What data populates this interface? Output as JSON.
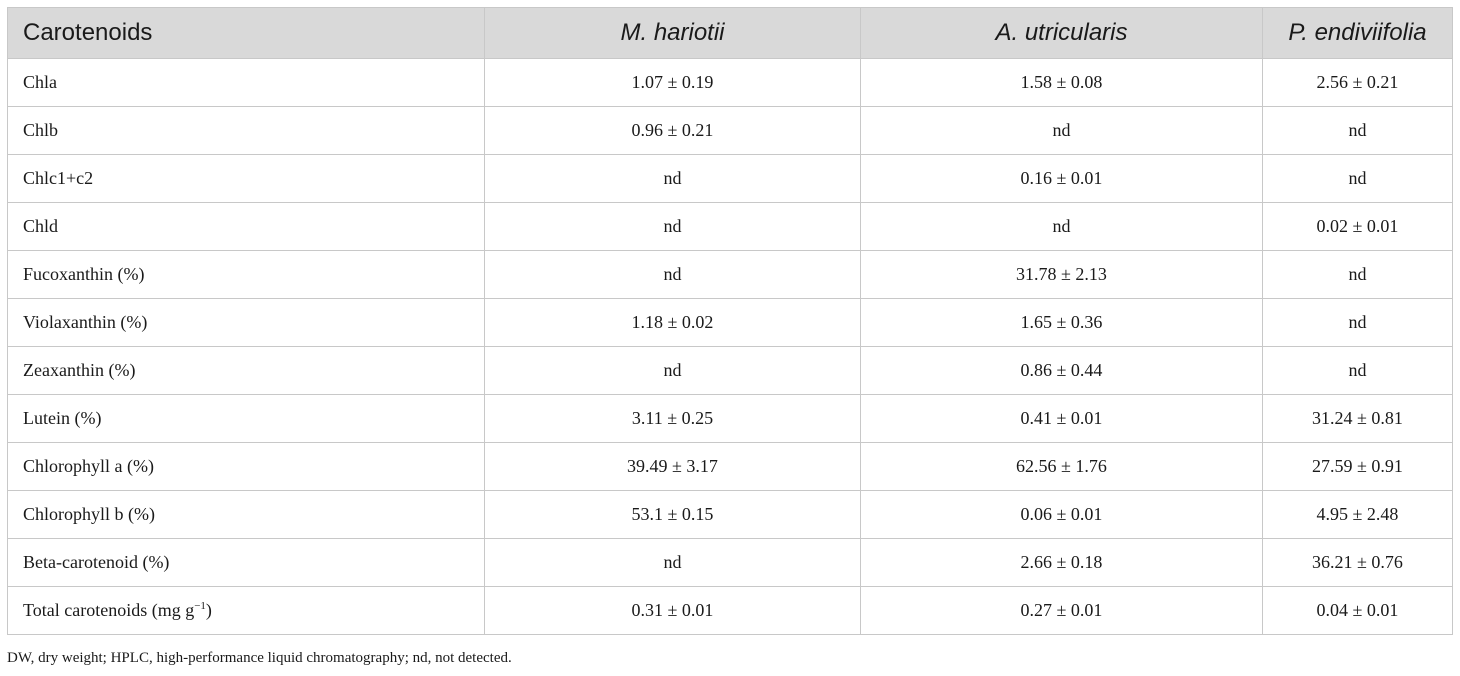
{
  "table": {
    "headers": [
      "Carotenoids",
      "M. hariotii",
      "A. utricularis",
      "P. endiviifolia"
    ],
    "rows": [
      {
        "label": "Chla",
        "values": [
          "1.07 ± 0.19",
          "1.58 ± 0.08",
          "2.56 ± 0.21"
        ]
      },
      {
        "label": "Chlb",
        "values": [
          "0.96 ± 0.21",
          "nd",
          "nd"
        ]
      },
      {
        "label": "Chlc1+c2",
        "values": [
          "nd",
          "0.16 ± 0.01",
          "nd"
        ]
      },
      {
        "label": "Chld",
        "values": [
          "nd",
          "nd",
          "0.02 ± 0.01"
        ]
      },
      {
        "label": "Fucoxanthin (%)",
        "values": [
          "nd",
          "31.78 ± 2.13",
          "nd"
        ]
      },
      {
        "label": "Violaxanthin (%)",
        "values": [
          "1.18 ± 0.02",
          "1.65 ± 0.36",
          "nd"
        ]
      },
      {
        "label": "Zeaxanthin (%)",
        "values": [
          "nd",
          "0.86 ± 0.44",
          "nd"
        ]
      },
      {
        "label": "Lutein (%)",
        "values": [
          "3.11 ± 0.25",
          "0.41 ± 0.01",
          "31.24 ± 0.81"
        ]
      },
      {
        "label": "Chlorophyll a (%)",
        "values": [
          "39.49 ± 3.17",
          "62.56 ± 1.76",
          "27.59 ± 0.91"
        ]
      },
      {
        "label": "Chlorophyll b (%)",
        "values": [
          "53.1 ± 0.15",
          "0.06 ± 0.01",
          "4.95 ± 2.48"
        ]
      },
      {
        "label": "Beta-carotenoid (%)",
        "values": [
          "nd",
          "2.66 ± 0.18",
          "36.21 ± 0.76"
        ]
      },
      {
        "label": "Total carotenoids (mg g",
        "label_sup": "−1",
        "label_suffix": ")",
        "values": [
          "0.31 ± 0.01",
          "0.27 ± 0.01",
          "0.04 ± 0.01"
        ]
      }
    ]
  },
  "footnote": "DW, dry weight; HPLC, high-performance liquid chromatography; nd, not detected."
}
